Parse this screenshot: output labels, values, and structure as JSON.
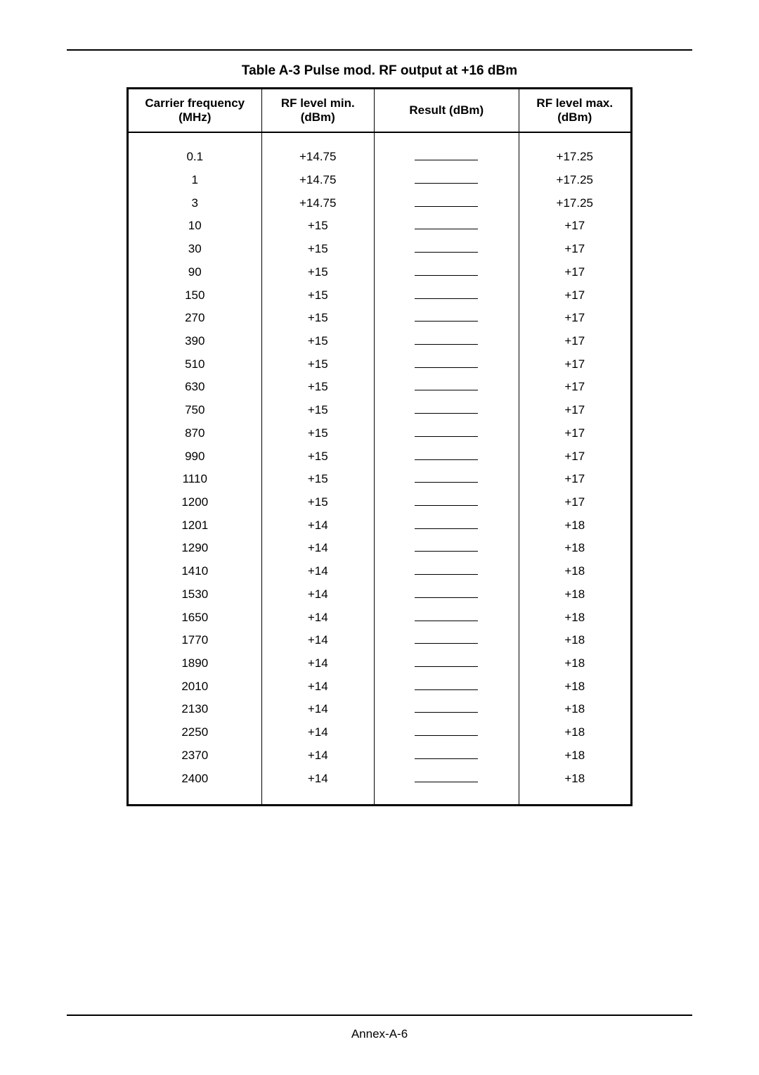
{
  "title": "Table A-3  Pulse mod. RF output at +16 dBm",
  "columns": {
    "freq": "Carrier frequency (MHz)",
    "min": "RF level min. (dBm)",
    "res": "Result (dBm)",
    "max": "RF level max. (dBm)"
  },
  "rows": [
    {
      "freq": "0.1",
      "min": "+14.75",
      "max": "+17.25"
    },
    {
      "freq": "1",
      "min": "+14.75",
      "max": "+17.25"
    },
    {
      "freq": "3",
      "min": "+14.75",
      "max": "+17.25"
    },
    {
      "freq": "10",
      "min": "+15",
      "max": "+17"
    },
    {
      "freq": "30",
      "min": "+15",
      "max": "+17"
    },
    {
      "freq": "90",
      "min": "+15",
      "max": "+17"
    },
    {
      "freq": "150",
      "min": "+15",
      "max": "+17"
    },
    {
      "freq": "270",
      "min": "+15",
      "max": "+17"
    },
    {
      "freq": "390",
      "min": "+15",
      "max": "+17"
    },
    {
      "freq": "510",
      "min": "+15",
      "max": "+17"
    },
    {
      "freq": "630",
      "min": "+15",
      "max": "+17"
    },
    {
      "freq": "750",
      "min": "+15",
      "max": "+17"
    },
    {
      "freq": "870",
      "min": "+15",
      "max": "+17"
    },
    {
      "freq": "990",
      "min": "+15",
      "max": "+17"
    },
    {
      "freq": "1110",
      "min": "+15",
      "max": "+17"
    },
    {
      "freq": "1200",
      "min": "+15",
      "max": "+17"
    },
    {
      "freq": "1201",
      "min": "+14",
      "max": "+18"
    },
    {
      "freq": "1290",
      "min": "+14",
      "max": "+18"
    },
    {
      "freq": "1410",
      "min": "+14",
      "max": "+18"
    },
    {
      "freq": "1530",
      "min": "+14",
      "max": "+18"
    },
    {
      "freq": "1650",
      "min": "+14",
      "max": "+18"
    },
    {
      "freq": "1770",
      "min": "+14",
      "max": "+18"
    },
    {
      "freq": "1890",
      "min": "+14",
      "max": "+18"
    },
    {
      "freq": "2010",
      "min": "+14",
      "max": "+18"
    },
    {
      "freq": "2130",
      "min": "+14",
      "max": "+18"
    },
    {
      "freq": "2250",
      "min": "+14",
      "max": "+18"
    },
    {
      "freq": "2370",
      "min": "+14",
      "max": "+18"
    },
    {
      "freq": "2400",
      "min": "+14",
      "max": "+18"
    }
  ],
  "footer": "Annex-A-6"
}
